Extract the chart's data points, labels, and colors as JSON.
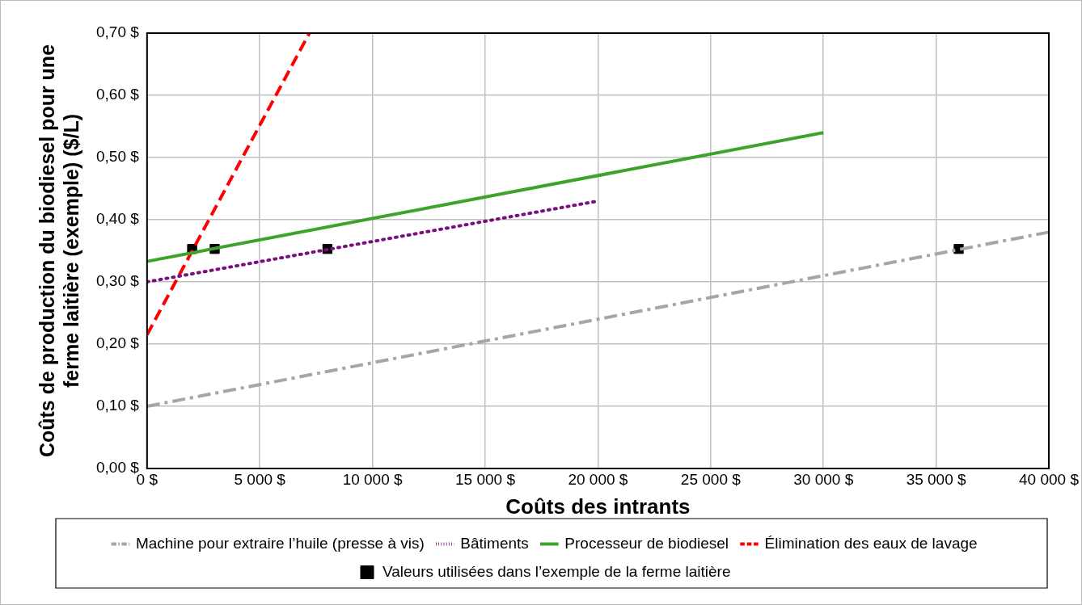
{
  "chart_data": {
    "type": "line",
    "xlabel": "Coûts des intrants",
    "ylabel": "Coûts de production du biodiesel pour une ferme laitière (exemple) ($/L)",
    "xlim": [
      0,
      40000
    ],
    "xticks": [
      {
        "value": 0,
        "label": "0 $"
      },
      {
        "value": 5000,
        "label": "5 000 $"
      },
      {
        "value": 10000,
        "label": "10 000 $"
      },
      {
        "value": 15000,
        "label": "15 000 $"
      },
      {
        "value": 20000,
        "label": "20 000 $"
      },
      {
        "value": 25000,
        "label": "25 000 $"
      },
      {
        "value": 30000,
        "label": "30 000 $"
      },
      {
        "value": 35000,
        "label": "35 000 $"
      },
      {
        "value": 40000,
        "label": "40 000 $"
      }
    ],
    "ylim": [
      0,
      0.7
    ],
    "yticks": [
      {
        "value": 0,
        "label": "0,00 $"
      },
      {
        "value": 0.1,
        "label": "0,10 $"
      },
      {
        "value": 0.2,
        "label": "0,20 $"
      },
      {
        "value": 0.3,
        "label": "0,30 $"
      },
      {
        "value": 0.4,
        "label": "0,40 $"
      },
      {
        "value": 0.5,
        "label": "0,50 $"
      },
      {
        "value": 0.6,
        "label": "0,60 $"
      },
      {
        "value": 0.7,
        "label": "0,70 $"
      }
    ],
    "grid": true,
    "legend": "bottom",
    "series": [
      {
        "name": "Machine pour extraire l’huile (presse à vis)",
        "color": "#a6a6a6",
        "line_style": "dashdot",
        "marker": "none",
        "x": [
          0,
          40000
        ],
        "values": [
          0.1,
          0.38
        ]
      },
      {
        "name": "Bâtiments",
        "color": "#7b0f7b",
        "line_style": "dotted",
        "marker": "none",
        "x": [
          0,
          20000
        ],
        "values": [
          0.3,
          0.43
        ]
      },
      {
        "name": "Processeur de biodiesel",
        "color": "#3da32a",
        "line_style": "solid",
        "marker": "none",
        "x": [
          0,
          30000
        ],
        "values": [
          0.333,
          0.54
        ]
      },
      {
        "name": "Élimination des eaux de lavage",
        "color": "#ff0000",
        "line_style": "dashed",
        "marker": "none",
        "x": [
          0,
          7200
        ],
        "values": [
          0.215,
          0.7
        ]
      },
      {
        "name": "Valeurs utilisées dans l’exemple de la ferme laitière",
        "type": "scatter",
        "color": "#000000",
        "marker": "square",
        "x": [
          2000,
          3000,
          8000,
          36000
        ],
        "values": [
          0.353,
          0.353,
          0.353,
          0.353
        ]
      }
    ]
  }
}
